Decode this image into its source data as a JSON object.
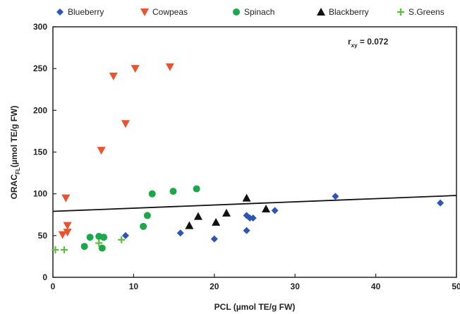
{
  "chart_data": {
    "type": "scatter",
    "xlabel": "PCL (µmol TE/g FW)",
    "ylabel_main": "ORAC",
    "ylabel_sub": "FL",
    "ylabel_rest": "(µmol TE/g FW)",
    "xlim": [
      0,
      50
    ],
    "ylim": [
      0,
      300
    ],
    "x_ticks": [
      "0",
      "10",
      "20",
      "30",
      "40",
      "50"
    ],
    "y_ticks": [
      "0",
      "50",
      "100",
      "150",
      "200",
      "250",
      "300"
    ],
    "legend_position": "top",
    "grid": false,
    "annotation": {
      "main": "r",
      "sub": "xy",
      "rest": " = 0.072"
    },
    "trendline": {
      "x": [
        0,
        50
      ],
      "y": [
        79,
        98
      ]
    },
    "series": [
      {
        "name": "Blueberry",
        "marker": "diamond",
        "color": "#2e55b5",
        "points": [
          [
            9,
            50
          ],
          [
            15.8,
            53
          ],
          [
            20,
            46
          ],
          [
            24,
            56
          ],
          [
            24,
            74
          ],
          [
            24.4,
            71
          ],
          [
            24.8,
            71
          ],
          [
            27.5,
            80
          ],
          [
            35,
            97
          ],
          [
            48,
            89
          ]
        ]
      },
      {
        "name": "Cowpeas",
        "marker": "triangle-down",
        "color": "#e8542f",
        "points": [
          [
            1.2,
            51
          ],
          [
            1.6,
            95
          ],
          [
            1.8,
            62
          ],
          [
            1.8,
            54
          ],
          [
            6,
            152
          ],
          [
            7.5,
            241
          ],
          [
            9,
            184
          ],
          [
            10.2,
            250
          ],
          [
            14.5,
            252
          ]
        ]
      },
      {
        "name": "Spinach",
        "marker": "circle",
        "color": "#1aa84b",
        "points": [
          [
            3.9,
            37
          ],
          [
            4.6,
            48
          ],
          [
            5.7,
            49
          ],
          [
            6.1,
            35
          ],
          [
            6.3,
            48
          ],
          [
            11.2,
            61
          ],
          [
            11.7,
            74
          ],
          [
            12.3,
            100
          ],
          [
            14.9,
            103
          ],
          [
            17.8,
            106
          ]
        ]
      },
      {
        "name": "Blackberry",
        "marker": "triangle-up",
        "color": "#111111",
        "points": [
          [
            16.9,
            62
          ],
          [
            18,
            73
          ],
          [
            20.2,
            66
          ],
          [
            21.5,
            77
          ],
          [
            24,
            95
          ],
          [
            26.4,
            82
          ]
        ]
      },
      {
        "name": "S.Greens",
        "marker": "plus",
        "color": "#5cbf3b",
        "points": [
          [
            0.3,
            33
          ],
          [
            1.4,
            33
          ],
          [
            5.7,
            41
          ],
          [
            8.5,
            45
          ]
        ]
      }
    ]
  }
}
